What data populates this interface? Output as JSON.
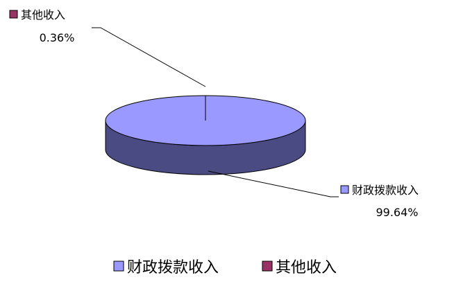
{
  "chart_data": {
    "type": "pie",
    "variant": "3d",
    "slices": [
      {
        "label": "财政拨款收入",
        "value": 99.64,
        "value_label": "99.64%",
        "color_top": "#9999ff",
        "color_side": "#4b4b84"
      },
      {
        "label": "其他收入",
        "value": 0.36,
        "value_label": "0.36%",
        "color_top": "#993366",
        "color_side": "#4f1a35"
      }
    ],
    "legend": {
      "position": "bottom",
      "entries": [
        "财政拨款收入",
        "其他收入"
      ]
    }
  }
}
